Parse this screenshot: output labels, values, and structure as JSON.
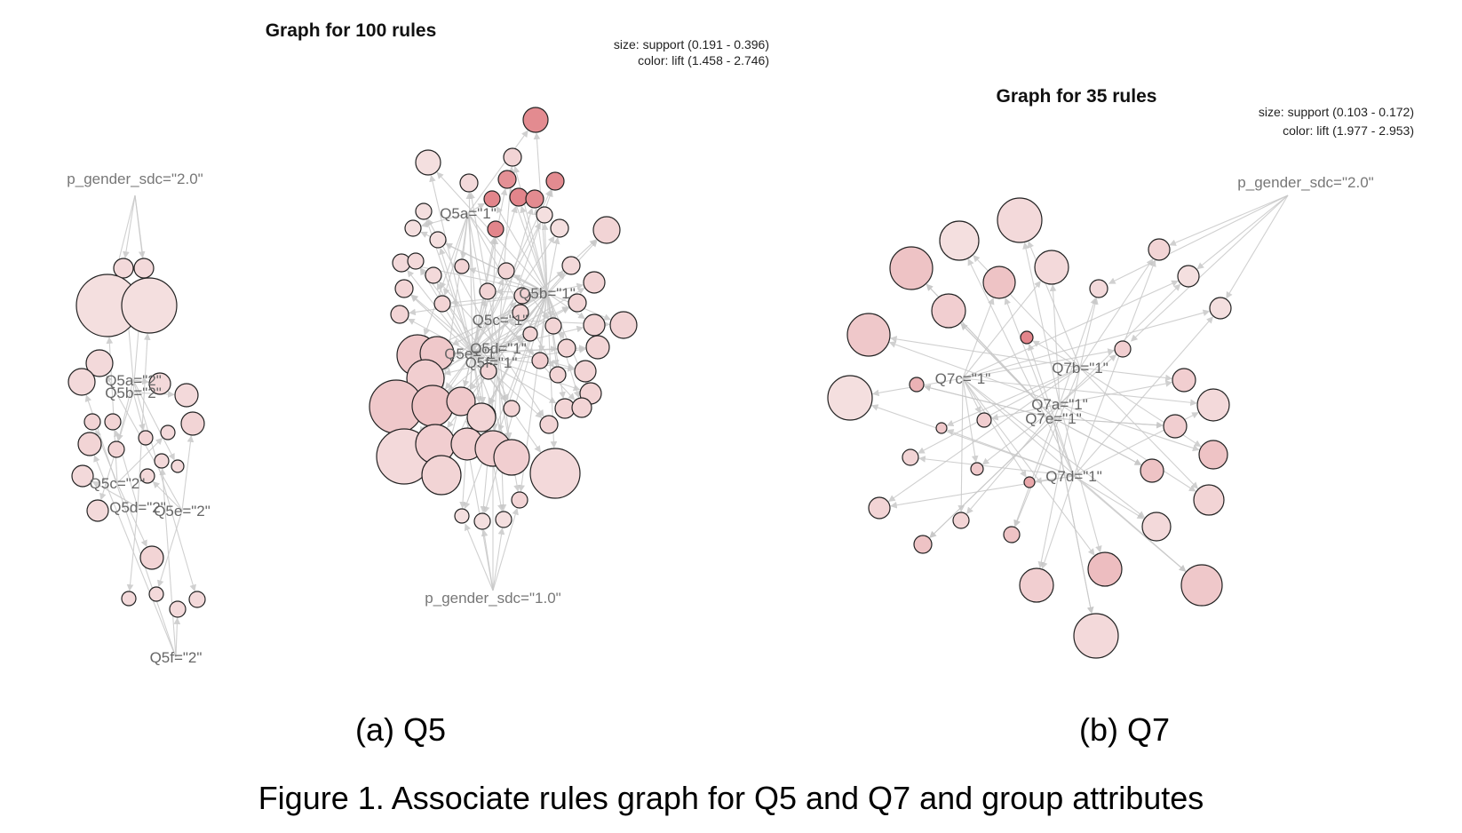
{
  "figure": {
    "caption": "Figure 1. Associate rules graph for Q5 and Q7 and group attributes"
  },
  "panels": [
    {
      "id": "q5",
      "title": "Graph for 100 rules",
      "legend_size": "size: support (0.191 - 0.396)",
      "legend_color": "color: lift (1.458 - 2.746)",
      "sub_caption": "(a) Q5",
      "item_labels": [
        "Q5a=\"1\"",
        "Q5b=\"1\"",
        "Q5c=\"1\"",
        "Q5d=\"1\"",
        "Q5e=\"1\"",
        "Q5f=\"1\"",
        "Q5a=\"2\"",
        "Q5b=\"2\"",
        "Q5c=\"2\"",
        "Q5d=\"2\"",
        "Q5e=\"2\"",
        "Q5f=\"2\""
      ],
      "attribute_labels": [
        "p_gender_sdc=\"2.0\"",
        "p_gender_sdc=\"1.0\""
      ]
    },
    {
      "id": "q7",
      "title": "Graph for 35 rules",
      "legend_size": "size: support (0.103 - 0.172)",
      "legend_color": "color: lift (1.977 - 2.953)",
      "sub_caption": "(b) Q7",
      "item_labels": [
        "Q7a=\"1\"",
        "Q7b=\"1\"",
        "Q7c=\"1\"",
        "Q7d=\"1\"",
        "Q7e=\"1\""
      ],
      "attribute_labels": [
        "p_gender_sdc=\"2.0\""
      ]
    }
  ],
  "colors": {
    "node_low_lift": "#f6eaea",
    "node_high_lift": "#e07a80",
    "edge": "#c8c8c8",
    "node_border": "#222222"
  }
}
